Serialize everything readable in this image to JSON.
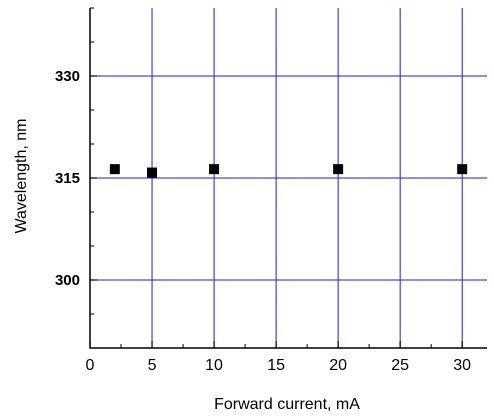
{
  "chart_data": {
    "type": "scatter",
    "title": "",
    "xlabel": "Forward current, mA",
    "ylabel": "Wavelength, nm",
    "xlim": [
      0,
      32
    ],
    "ylim": [
      290,
      340
    ],
    "x_ticks": [
      0,
      5,
      10,
      15,
      20,
      25,
      30
    ],
    "x_tick_labels": [
      "0",
      "5",
      "10",
      "15",
      "20",
      "25",
      "30"
    ],
    "y_ticks": [
      300,
      315,
      330
    ],
    "y_tick_labels": [
      "300",
      "315",
      "330"
    ],
    "grid": true,
    "grid_color": "#1f1fcf",
    "marker": "square",
    "marker_color": "#000000",
    "series": [
      {
        "x": [
          2,
          5,
          10,
          20,
          30
        ],
        "y": [
          316.3,
          315.8,
          316.3,
          316.3,
          316.3
        ]
      }
    ]
  }
}
